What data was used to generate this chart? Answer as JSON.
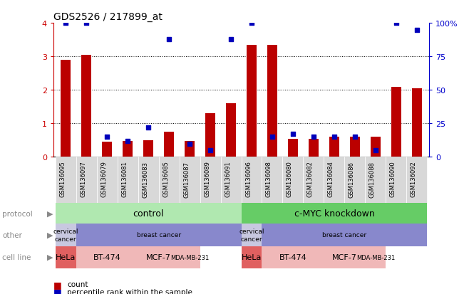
{
  "title": "GDS2526 / 217899_at",
  "samples": [
    "GSM136095",
    "GSM136097",
    "GSM136079",
    "GSM136081",
    "GSM136083",
    "GSM136085",
    "GSM136087",
    "GSM136089",
    "GSM136091",
    "GSM136096",
    "GSM136098",
    "GSM136080",
    "GSM136082",
    "GSM136084",
    "GSM136086",
    "GSM136088",
    "GSM136090",
    "GSM136092"
  ],
  "count_values": [
    2.9,
    3.05,
    0.45,
    0.48,
    0.5,
    0.75,
    0.48,
    1.3,
    1.6,
    3.35,
    3.35,
    0.55,
    0.55,
    0.6,
    0.6,
    0.6,
    2.1,
    2.05
  ],
  "percentile_values": [
    100,
    100,
    15,
    12,
    22,
    88,
    10,
    5,
    88,
    100,
    15,
    17,
    15,
    15,
    15,
    5,
    100,
    95
  ],
  "ylim_left": [
    0,
    4
  ],
  "ylim_right": [
    0,
    100
  ],
  "yticks_left": [
    0,
    1,
    2,
    3,
    4
  ],
  "yticks_right": [
    0,
    25,
    50,
    75,
    100
  ],
  "ytick_labels_right": [
    "0",
    "25",
    "50",
    "75",
    "100%"
  ],
  "bar_color": "#bb0000",
  "dot_color": "#0000bb",
  "protocol_color_ctrl": "#b0e8b0",
  "protocol_color_cmyc": "#66cc66",
  "other_color_cervical": "#c8c8e0",
  "other_color_breast": "#8888cc",
  "cell_color_hela": "#e06060",
  "cell_color_other": "#f0b8b8",
  "tick_label_color_left": "#cc0000",
  "tick_label_color_right": "#0000cc",
  "row_label_color": "#888888",
  "xtick_bg": "#d8d8d8"
}
